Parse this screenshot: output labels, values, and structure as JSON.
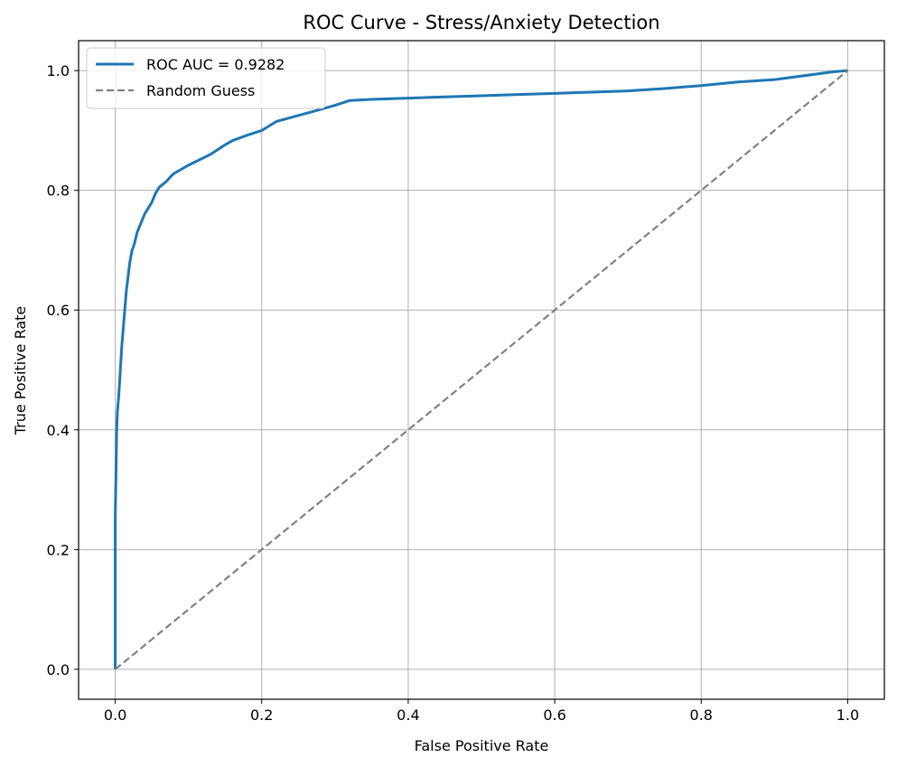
{
  "chart_data": {
    "type": "line",
    "title": "ROC Curve - Stress/Anxiety Detection",
    "xlabel": "False Positive Rate",
    "ylabel": "True Positive Rate",
    "xlim": [
      -0.05,
      1.05
    ],
    "ylim": [
      -0.05,
      1.05
    ],
    "xticks": [
      0.0,
      0.2,
      0.4,
      0.6,
      0.8,
      1.0
    ],
    "yticks": [
      0.0,
      0.2,
      0.4,
      0.6,
      0.8,
      1.0
    ],
    "xtick_labels": [
      "0.0",
      "0.2",
      "0.4",
      "0.6",
      "0.8",
      "1.0"
    ],
    "ytick_labels": [
      "0.0",
      "0.2",
      "0.4",
      "0.6",
      "0.8",
      "1.0"
    ],
    "grid": true,
    "legend_position": "upper-left",
    "series": [
      {
        "name": "ROC AUC = 0.9282",
        "color": "#1f77b4",
        "style": "solid",
        "x": [
          0.0,
          0.0,
          0.002,
          0.003,
          0.005,
          0.007,
          0.009,
          0.011,
          0.013,
          0.015,
          0.018,
          0.02,
          0.023,
          0.026,
          0.03,
          0.035,
          0.04,
          0.045,
          0.05,
          0.055,
          0.06,
          0.065,
          0.07,
          0.075,
          0.08,
          0.09,
          0.1,
          0.11,
          0.12,
          0.13,
          0.14,
          0.15,
          0.16,
          0.18,
          0.2,
          0.22,
          0.25,
          0.28,
          0.3,
          0.32,
          0.35,
          0.4,
          0.45,
          0.5,
          0.55,
          0.6,
          0.65,
          0.7,
          0.75,
          0.8,
          0.85,
          0.9,
          0.95,
          0.98,
          1.0
        ],
        "y": [
          0.0,
          0.25,
          0.4,
          0.43,
          0.46,
          0.5,
          0.54,
          0.57,
          0.6,
          0.63,
          0.66,
          0.68,
          0.7,
          0.71,
          0.73,
          0.745,
          0.76,
          0.77,
          0.78,
          0.795,
          0.805,
          0.81,
          0.815,
          0.822,
          0.828,
          0.835,
          0.842,
          0.848,
          0.854,
          0.86,
          0.868,
          0.876,
          0.883,
          0.892,
          0.9,
          0.915,
          0.925,
          0.935,
          0.942,
          0.95,
          0.952,
          0.954,
          0.956,
          0.958,
          0.96,
          0.962,
          0.964,
          0.966,
          0.97,
          0.975,
          0.981,
          0.985,
          0.993,
          0.998,
          1.0
        ]
      },
      {
        "name": "Random Guess",
        "color": "#808080",
        "style": "dashed",
        "x": [
          0.0,
          1.0
        ],
        "y": [
          0.0,
          1.0
        ]
      }
    ]
  }
}
